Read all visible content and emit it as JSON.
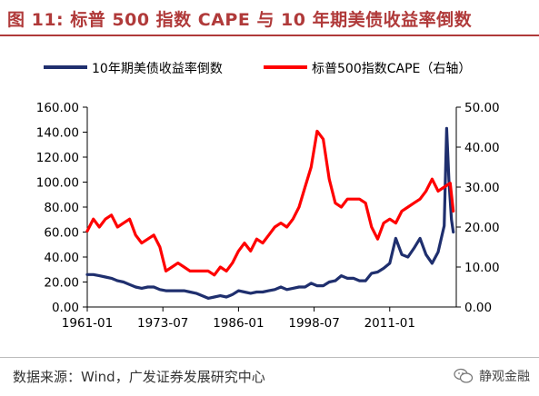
{
  "title": "图 11: 标普 500 指数 CAPE 与 10 年期美债收益率倒数",
  "source": "数据来源：Wind，广发证券发展研究中心",
  "watermark": "静观金融",
  "colors": {
    "title": "#b03a3a",
    "series_left": "#1f2f6e",
    "series_right": "#ff0000",
    "axis": "#000000"
  },
  "chart_data": {
    "type": "line",
    "legend_position": "top",
    "grid": false,
    "x_ticks": [
      "1961-01",
      "1973-07",
      "1986-01",
      "1998-07",
      "2011-01"
    ],
    "x_range": [
      1961.0,
      2022.0
    ],
    "y_left": {
      "min": 0,
      "max": 160,
      "ticks": [
        "0.00",
        "20.00",
        "40.00",
        "60.00",
        "80.00",
        "100.00",
        "120.00",
        "140.00",
        "160.00"
      ]
    },
    "y_right": {
      "min": 0,
      "max": 50,
      "ticks": [
        "0.00",
        "10.00",
        "20.00",
        "30.00",
        "40.00",
        "50.00"
      ]
    },
    "series": [
      {
        "name": "10年期美债收益率倒数",
        "axis": "left",
        "color": "#1f2f6e",
        "x": [
          1961.0,
          1962.0,
          1963.0,
          1964.0,
          1965.0,
          1966.0,
          1967.0,
          1968.0,
          1969.0,
          1970.0,
          1971.0,
          1972.0,
          1973.0,
          1974.0,
          1975.0,
          1976.0,
          1977.0,
          1978.0,
          1979.0,
          1980.0,
          1981.0,
          1982.0,
          1983.0,
          1984.0,
          1985.0,
          1986.0,
          1987.0,
          1988.0,
          1989.0,
          1990.0,
          1991.0,
          1992.0,
          1993.0,
          1994.0,
          1995.0,
          1996.0,
          1997.0,
          1998.0,
          1999.0,
          2000.0,
          2001.0,
          2002.0,
          2003.0,
          2004.0,
          2005.0,
          2006.0,
          2007.0,
          2008.0,
          2009.0,
          2010.0,
          2011.0,
          2012.0,
          2013.0,
          2014.0,
          2015.0,
          2016.0,
          2017.0,
          2018.0,
          2019.0,
          2020.0,
          2020.4,
          2020.8,
          2021.2,
          2021.5
        ],
        "y": [
          26,
          26,
          25,
          24,
          23,
          21,
          20,
          18,
          16,
          15,
          16,
          16,
          14,
          13,
          13,
          13,
          13,
          12,
          11,
          9,
          7,
          8,
          9,
          8,
          10,
          13,
          12,
          11,
          12,
          12,
          13,
          14,
          16,
          14,
          15,
          16,
          16,
          19,
          17,
          17,
          20,
          21,
          25,
          23,
          23,
          21,
          21,
          27,
          28,
          31,
          35,
          55,
          42,
          40,
          47,
          55,
          42,
          35,
          44,
          65,
          143,
          100,
          70,
          60
        ]
      },
      {
        "name": "标普500指数CAPE（右轴）",
        "axis": "right",
        "color": "#ff0000",
        "x": [
          1961.0,
          1962.0,
          1963.0,
          1964.0,
          1965.0,
          1966.0,
          1967.0,
          1968.0,
          1969.0,
          1970.0,
          1971.0,
          1972.0,
          1973.0,
          1974.0,
          1975.0,
          1976.0,
          1977.0,
          1978.0,
          1979.0,
          1980.0,
          1981.0,
          1982.0,
          1983.0,
          1984.0,
          1985.0,
          1986.0,
          1987.0,
          1988.0,
          1989.0,
          1990.0,
          1991.0,
          1992.0,
          1993.0,
          1994.0,
          1995.0,
          1996.0,
          1997.0,
          1998.0,
          1999.0,
          2000.0,
          2001.0,
          2002.0,
          2003.0,
          2004.0,
          2005.0,
          2006.0,
          2007.0,
          2008.0,
          2009.0,
          2010.0,
          2011.0,
          2012.0,
          2013.0,
          2014.0,
          2015.0,
          2016.0,
          2017.0,
          2018.0,
          2019.0,
          2020.0,
          2021.0,
          2021.5
        ],
        "y": [
          19,
          22,
          20,
          22,
          23,
          20,
          21,
          22,
          18,
          16,
          17,
          18,
          15,
          9,
          10,
          11,
          10,
          9,
          9,
          9,
          9,
          8,
          10,
          9,
          11,
          14,
          16,
          14,
          17,
          16,
          18,
          20,
          21,
          20,
          22,
          25,
          30,
          35,
          44,
          42,
          32,
          26,
          25,
          27,
          27,
          27,
          26,
          20,
          17,
          21,
          22,
          21,
          24,
          25,
          26,
          27,
          29,
          32,
          29,
          30,
          31,
          24
        ]
      }
    ]
  }
}
